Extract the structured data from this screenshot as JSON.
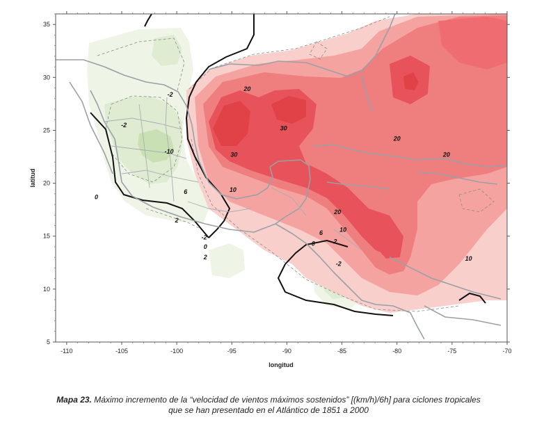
{
  "chart_data": {
    "type": "heatmap",
    "xlabel": "longitud",
    "ylabel": "latitud",
    "xlim": [
      -111,
      -70
    ],
    "ylim": [
      5,
      36
    ],
    "x_ticks": [
      -110,
      -105,
      -100,
      -95,
      -90,
      -85,
      -80,
      -75,
      -70
    ],
    "y_ticks": [
      5,
      10,
      15,
      20,
      25,
      30,
      35
    ],
    "x_tick_labels": [
      "-110",
      "-105",
      "-100",
      "-95",
      "-90",
      "-85",
      "-80",
      "-75",
      "-70"
    ],
    "y_tick_labels": [
      "5",
      "10",
      "15",
      "20",
      "25",
      "30",
      "35"
    ],
    "contour_labels": [
      {
        "text": "-2",
        "lon": -100.6,
        "lat": 28.2
      },
      {
        "text": "-2",
        "lon": -104.8,
        "lat": 25.3
      },
      {
        "text": "-10",
        "lon": -100.7,
        "lat": 22.8
      },
      {
        "text": "0",
        "lon": -107.3,
        "lat": 18.5
      },
      {
        "text": "6",
        "lon": -99.2,
        "lat": 19.0
      },
      {
        "text": "2",
        "lon": -100.0,
        "lat": 16.3
      },
      {
        "text": "-2",
        "lon": -97.5,
        "lat": 14.7
      },
      {
        "text": "0",
        "lon": -97.4,
        "lat": 13.8
      },
      {
        "text": "2",
        "lon": -97.4,
        "lat": 12.8
      },
      {
        "text": "20",
        "lon": -93.6,
        "lat": 28.7
      },
      {
        "text": "30",
        "lon": -90.3,
        "lat": 25.0
      },
      {
        "text": "30",
        "lon": -94.8,
        "lat": 22.5
      },
      {
        "text": "10",
        "lon": -94.9,
        "lat": 19.2
      },
      {
        "text": "20",
        "lon": -85.4,
        "lat": 17.1
      },
      {
        "text": "10",
        "lon": -84.9,
        "lat": 15.4
      },
      {
        "text": "6",
        "lon": -86.9,
        "lat": 15.1
      },
      {
        "text": "2",
        "lon": -85.6,
        "lat": 14.3
      },
      {
        "text": "0",
        "lon": -87.6,
        "lat": 14.1
      },
      {
        "text": "-2",
        "lon": -85.3,
        "lat": 12.2
      },
      {
        "text": "20",
        "lon": -80.0,
        "lat": 24.0
      },
      {
        "text": "20",
        "lon": -75.5,
        "lat": 22.5
      },
      {
        "text": "10",
        "lon": -73.5,
        "lat": 12.7
      }
    ],
    "grid": false
  },
  "caption": {
    "label": "Mapa 23.",
    "line1": " Máximo incremento de la “velocidad de vientos máximos sostenidos” [(km/h)/6h] para ciclones tropicales",
    "line2": "que se han presentado en el Atlántico de 1851 a 2000"
  },
  "colors": {
    "max_high": "#e8525a",
    "high": "#ef7f7f",
    "mid": "#f4a3a1",
    "low": "#f8cfcb",
    "neg_light": "#eef4e6",
    "neg_mid": "#dfecd2",
    "neg_dark": "#c9e0b5",
    "coast": "#9aa0a6",
    "zero_contour": "#111111"
  }
}
